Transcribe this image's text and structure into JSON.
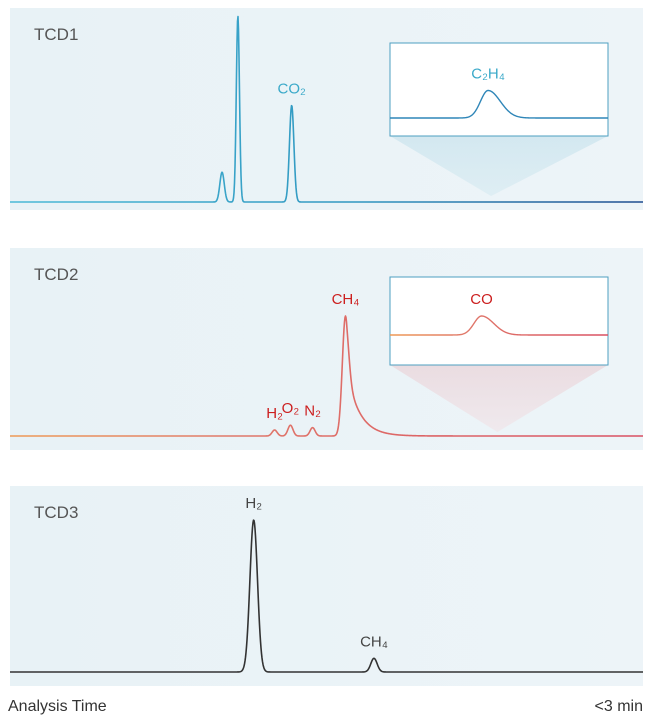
{
  "chart_data": [
    {
      "type": "line",
      "title": "TCD1",
      "color": "#3aa9c9",
      "color_end": "#1e4c8f",
      "panel_bg": "#e9f3f7",
      "x_range": [
        0,
        1
      ],
      "peaks_unlabeled": [
        {
          "x": 0.335,
          "height": 0.16,
          "width": 0.0035
        },
        {
          "x": 0.36,
          "height": 1.0,
          "width": 0.0025
        }
      ],
      "peaks": [
        {
          "label": "CO₂",
          "x": 0.445,
          "height": 0.52,
          "width": 0.0035
        }
      ],
      "inset": {
        "label": "C₂H₄",
        "highlight_x": 0.76,
        "peak_x": 0.45,
        "peak_height": 0.55
      }
    },
    {
      "type": "line",
      "title": "TCD2",
      "color": "#d9646e",
      "color_start": "#ee9a55",
      "label_color": "#cc1f1f",
      "panel_bg": "#e9f3f7",
      "x_range": [
        0,
        1
      ],
      "peaks": [
        {
          "label": "H₂",
          "x": 0.418,
          "height": 0.05,
          "width": 0.004
        },
        {
          "label": "O₂",
          "x": 0.443,
          "height": 0.09,
          "width": 0.004
        },
        {
          "label": "N₂",
          "x": 0.478,
          "height": 0.07,
          "width": 0.004
        },
        {
          "label": "CH₄",
          "x": 0.53,
          "height": 1.0,
          "width": 0.005,
          "tail": 0.02
        }
      ],
      "inset": {
        "label": "CO",
        "highlight_x": 0.77,
        "peak_x": 0.42,
        "peak_height": 0.38
      }
    },
    {
      "type": "line",
      "title": "TCD3",
      "color": "#333333",
      "label_color": "#444444",
      "panel_bg": "#e9f3f7",
      "x_range": [
        0,
        1
      ],
      "peaks": [
        {
          "label": "H₂",
          "x": 0.385,
          "height": 1.0,
          "width": 0.006
        },
        {
          "label": "CH₄",
          "x": 0.575,
          "height": 0.09,
          "width": 0.005
        }
      ]
    }
  ],
  "footer": {
    "left": "Analysis Time",
    "right": "<3 min"
  }
}
